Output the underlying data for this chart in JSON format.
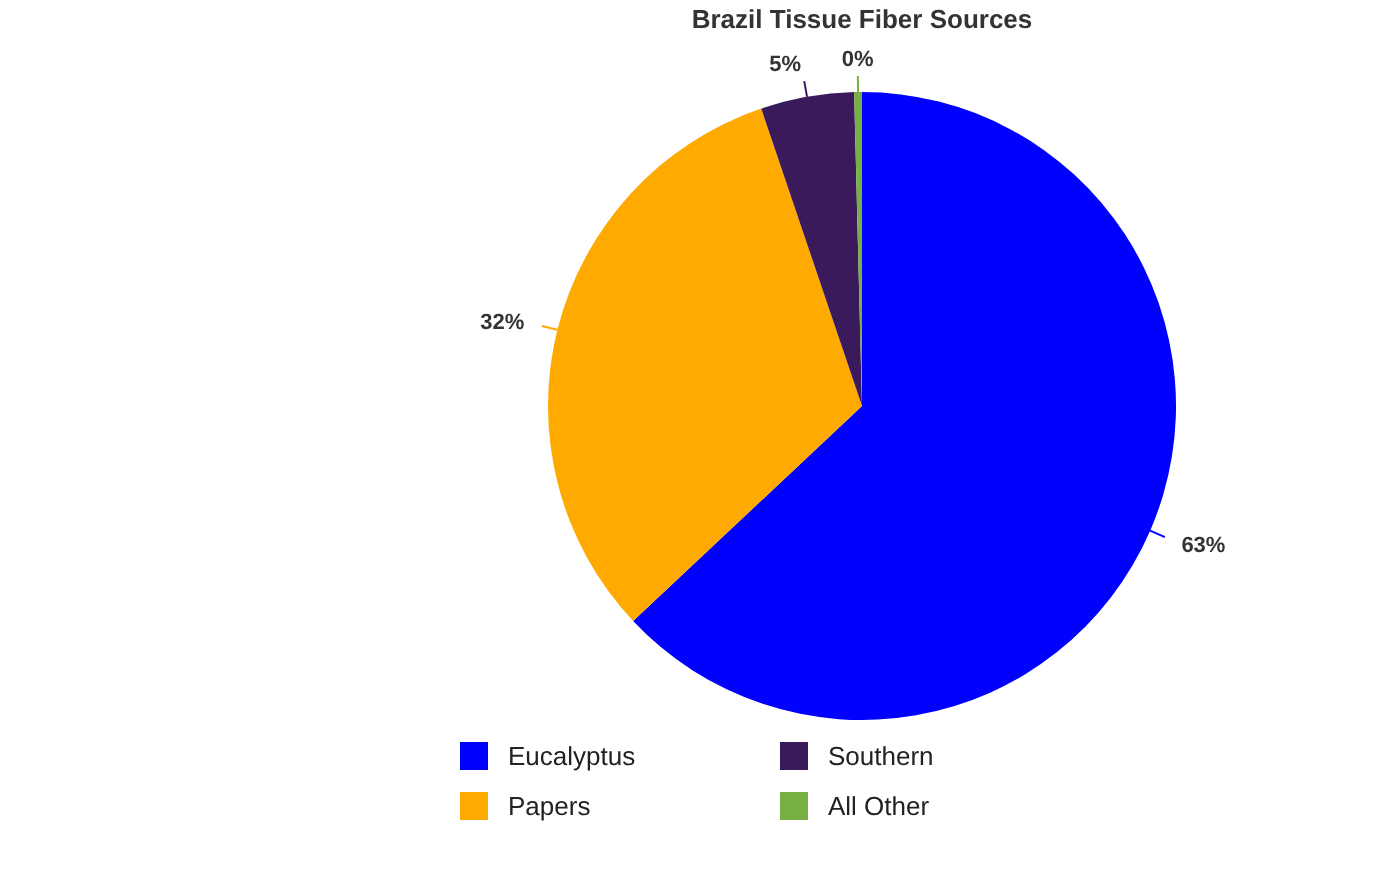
{
  "chart_data": {
    "type": "pie",
    "title": "Brazil Tissue Fiber Sources",
    "categories": [
      "Eucalyptus",
      "Papers",
      "Southern",
      "All Other"
    ],
    "values": [
      63,
      31.8,
      4.8,
      0.4
    ],
    "value_labels": [
      "63%",
      "32%",
      "5%",
      "0%"
    ],
    "colors": [
      "#0000ff",
      "#ffaa00",
      "#3b1a5c",
      "#77b043"
    ],
    "legend": "bottom"
  }
}
